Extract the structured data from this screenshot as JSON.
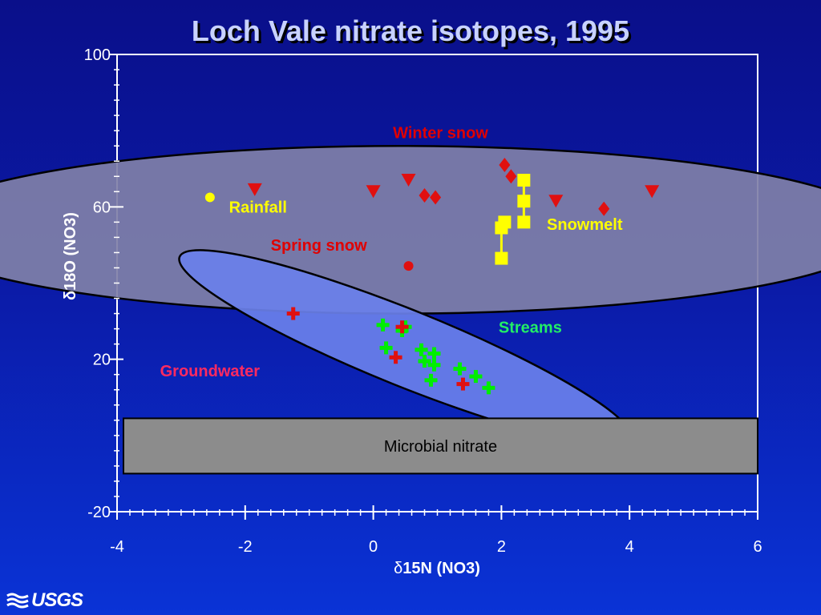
{
  "chart_data": {
    "type": "scatter",
    "title": "Loch Vale nitrate isotopes, 1995",
    "xlabel_symbol": "δ",
    "xlabel_main": "15N (NO3)",
    "ylabel": "δ18O (NO3)",
    "xlim": [
      -4,
      6
    ],
    "ylim": [
      -20,
      100
    ],
    "xticks": [
      -4,
      -2,
      0,
      2,
      4,
      6
    ],
    "yticks": [
      -20,
      20,
      60,
      100
    ],
    "ellipses": [
      {
        "name": "source-ellipse",
        "cx": 0.4,
        "cy": 54,
        "rx": 7.6,
        "ry": 22,
        "angle": 0,
        "fill": "#8080a8",
        "opacity": 0.92
      },
      {
        "name": "groundwater-streams-ellipse",
        "cx": 0.5,
        "cy": 23,
        "rx": 3.8,
        "ry": 10,
        "angle": 22,
        "fill": "#6a80ea",
        "opacity": 0.92
      }
    ],
    "region": {
      "name": "microbial-nitrate-box",
      "label": "Microbial nitrate",
      "x": [
        -3.9,
        6.0
      ],
      "y": [
        -10,
        4.5
      ],
      "fill": "#8c8c8c"
    },
    "series": [
      {
        "name": "Rainfall",
        "marker": "circle",
        "color": "#ffff00",
        "points": [
          [
            -2.55,
            62.5
          ]
        ]
      },
      {
        "name": "Spring snow",
        "marker": "circle",
        "color": "#e01010",
        "points": [
          [
            0.55,
            44.5
          ]
        ]
      },
      {
        "name": "Winter snow",
        "marker": "triangle-down",
        "color": "#e01010",
        "points": [
          [
            -1.85,
            64.5
          ],
          [
            0.0,
            64
          ],
          [
            0.55,
            67
          ],
          [
            2.85,
            61.5
          ],
          [
            4.35,
            64
          ]
        ]
      },
      {
        "name": "Winter snow",
        "marker": "diamond",
        "color": "#e01010",
        "points": [
          [
            0.8,
            63
          ],
          [
            0.97,
            62.5
          ],
          [
            2.05,
            71
          ],
          [
            2.15,
            68
          ],
          [
            3.6,
            59.5
          ]
        ]
      },
      {
        "name": "Snowmelt",
        "marker": "square",
        "color": "#ffff00",
        "points": [
          [
            2.35,
            67
          ],
          [
            2.35,
            61.5
          ],
          [
            2.35,
            56
          ],
          [
            2.05,
            56
          ],
          [
            2.0,
            54.5
          ],
          [
            2.0,
            46.5
          ]
        ],
        "errorbars": [
          {
            "x": 2.35,
            "y1": 56,
            "y2": 67
          },
          {
            "x": 2.0,
            "y1": 46.5,
            "y2": 56
          }
        ]
      },
      {
        "name": "Streams",
        "marker": "plus",
        "color": "#00ee00",
        "points": [
          [
            0.15,
            29
          ],
          [
            0.5,
            28.5
          ],
          [
            0.45,
            27.5
          ],
          [
            0.2,
            23
          ],
          [
            0.75,
            22.5
          ],
          [
            0.95,
            21.5
          ],
          [
            0.8,
            19.5
          ],
          [
            0.95,
            18.5
          ],
          [
            1.35,
            17.5
          ],
          [
            1.6,
            15.5
          ],
          [
            0.9,
            14.5
          ],
          [
            1.8,
            12.5
          ]
        ]
      },
      {
        "name": "Groundwater",
        "marker": "plus",
        "color": "#e01010",
        "points": [
          [
            -1.25,
            32
          ],
          [
            0.45,
            28.5
          ],
          [
            0.35,
            20.5
          ],
          [
            1.4,
            13.5
          ]
        ]
      }
    ],
    "annotations": [
      {
        "text": "Winter snow",
        "x": 1.05,
        "y": 78,
        "color": "#e00000"
      },
      {
        "text": "Rainfall",
        "x": -1.8,
        "y": 58.5,
        "color": "#ffff00"
      },
      {
        "text": "Spring snow",
        "x": -0.85,
        "y": 48.5,
        "color": "#e00000"
      },
      {
        "text": "Snowmelt",
        "x": 3.3,
        "y": 54,
        "color": "#ffff00"
      },
      {
        "text": "Streams",
        "x": 2.45,
        "y": 27,
        "color": "#22ee66"
      },
      {
        "text": "Groundwater",
        "x": -2.55,
        "y": 15.5,
        "color": "#ff2a60"
      }
    ],
    "grid": false,
    "legend": "none"
  },
  "logo": {
    "text": "USGS",
    "icon": "usgs-wave-icon"
  }
}
